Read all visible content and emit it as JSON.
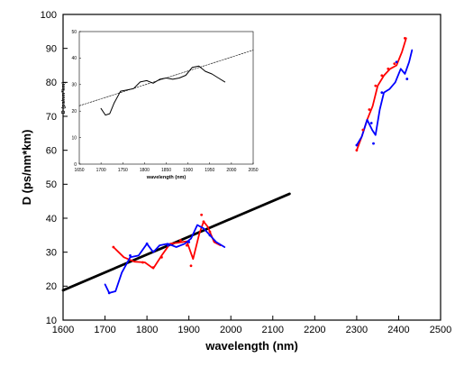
{
  "chart_data": [
    {
      "id": "main",
      "type": "line",
      "title": "",
      "xlabel": "wavelength (nm)",
      "ylabel": "D (ps/nm*km)",
      "xlim": [
        1600,
        2500
      ],
      "ylim": [
        10,
        100
      ],
      "xticks": [
        1600,
        1700,
        1800,
        1900,
        2000,
        2100,
        2200,
        2300,
        2400,
        2500
      ],
      "yticks": [
        10,
        20,
        30,
        40,
        50,
        60,
        70,
        80,
        90,
        100
      ],
      "grid": false,
      "legend": "none",
      "series": [
        {
          "color": "#000000",
          "style": "dense-line",
          "x": [
            1600,
            2140
          ],
          "y": [
            18.8,
            47.2
          ]
        },
        {
          "color": "#ff0000",
          "style": "line",
          "x": [
            1720,
            1745,
            1770,
            1795,
            1815,
            1835,
            1855,
            1875,
            1895,
            1910,
            1925,
            1935,
            1945,
            1960,
            1975
          ],
          "y": [
            31.5,
            28.5,
            27.2,
            27.0,
            25.2,
            29.0,
            32.5,
            32.8,
            33.2,
            28.0,
            35.5,
            39.0,
            37.5,
            33.0,
            32.0
          ]
        },
        {
          "color": "#0000ff",
          "style": "line",
          "x": [
            1700,
            1710,
            1725,
            1740,
            1760,
            1780,
            1800,
            1815,
            1830,
            1850,
            1870,
            1890,
            1905,
            1920,
            1935,
            1950,
            1965,
            1985
          ],
          "y": [
            20.5,
            18.0,
            18.5,
            24.0,
            28.5,
            29.0,
            32.5,
            30.0,
            32.0,
            32.5,
            31.5,
            32.5,
            34.0,
            38.0,
            37.0,
            35.0,
            33.0,
            31.5
          ]
        },
        {
          "color": "#ff0000",
          "style": "line",
          "x": [
            2300,
            2312,
            2325,
            2338,
            2350,
            2365,
            2380,
            2395,
            2408,
            2418
          ],
          "y": [
            60.0,
            64.0,
            69.0,
            73.0,
            79.0,
            82.0,
            84.0,
            85.0,
            89.0,
            93.0
          ]
        },
        {
          "color": "#0000ff",
          "style": "line",
          "x": [
            2300,
            2312,
            2325,
            2337,
            2345,
            2355,
            2365,
            2378,
            2392,
            2405,
            2415,
            2425,
            2432
          ],
          "y": [
            61.5,
            64.0,
            69.0,
            66.0,
            64.5,
            72.0,
            77.0,
            78.0,
            80.0,
            84.0,
            82.5,
            86.0,
            89.5
          ]
        }
      ],
      "markers": [
        {
          "color": "#ff0000",
          "x": [
            1720,
            1790,
            1815,
            1835,
            1880,
            1895,
            1905,
            1930,
            1935,
            1950,
            2300,
            2315,
            2330,
            2345,
            2360,
            2375,
            2390,
            2415
          ],
          "y": [
            31.5,
            27.0,
            25.5,
            28.5,
            33.5,
            32.0,
            26.0,
            41.0,
            39.0,
            36.0,
            60.0,
            66.0,
            72.0,
            79.0,
            82.0,
            84.0,
            85.5,
            93.0
          ]
        },
        {
          "color": "#0000ff",
          "x": [
            1710,
            1760,
            1800,
            1850,
            1900,
            1950,
            2300,
            2335,
            2340,
            2360,
            2395,
            2420
          ],
          "y": [
            18.0,
            29.0,
            32.5,
            32.0,
            33.0,
            35.0,
            61.5,
            68.0,
            62.0,
            77.0,
            86.0,
            81.0
          ]
        }
      ]
    },
    {
      "id": "inset",
      "type": "line",
      "title": "",
      "xlabel": "wavelength (nm)",
      "ylabel": "D (ps/nm*km)",
      "xlim": [
        1650,
        2050
      ],
      "ylim": [
        0,
        50
      ],
      "xticks": [
        1650,
        1700,
        1750,
        1800,
        1850,
        1900,
        1950,
        2000,
        2050
      ],
      "yticks": [
        0,
        10,
        20,
        30,
        40,
        50
      ],
      "grid": false,
      "legend": "none",
      "series": [
        {
          "color": "#000000",
          "style": "dashed",
          "x": [
            1650,
            2050
          ],
          "y": [
            22.0,
            43.0
          ]
        },
        {
          "color": "#000000",
          "style": "line",
          "x": [
            1700,
            1710,
            1720,
            1730,
            1745,
            1760,
            1775,
            1790,
            1805,
            1820,
            1835,
            1850,
            1865,
            1880,
            1895,
            1910,
            1925,
            1940,
            1955,
            1970,
            1985
          ],
          "y": [
            21.0,
            18.5,
            19.0,
            23.0,
            27.5,
            28.0,
            28.5,
            31.0,
            31.5,
            30.5,
            32.0,
            32.5,
            32.0,
            32.5,
            33.5,
            36.5,
            37.0,
            35.0,
            34.0,
            32.5,
            31.0
          ]
        }
      ]
    }
  ]
}
